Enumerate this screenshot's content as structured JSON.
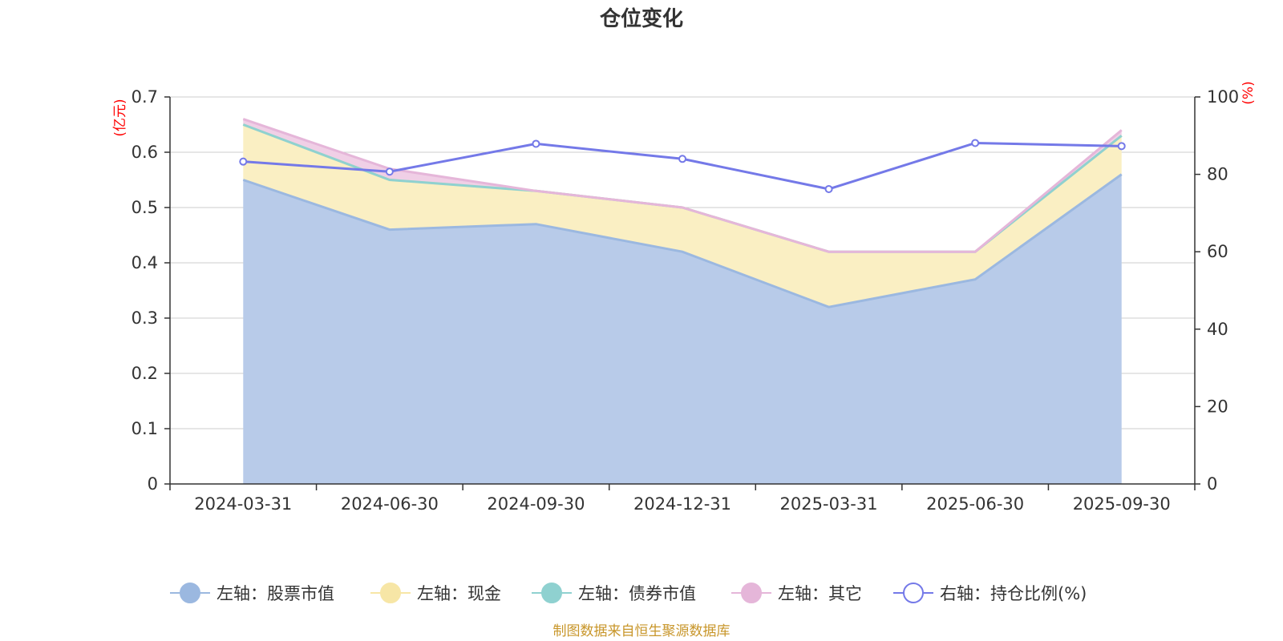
{
  "chart_data": {
    "type": "area",
    "title": "仓位变化",
    "categories": [
      "2024-03-31",
      "2024-06-30",
      "2024-09-30",
      "2024-12-31",
      "2025-03-31",
      "2025-06-30",
      "2025-09-30"
    ],
    "left_axis": {
      "unit": "(亿元)",
      "ylim": [
        0,
        0.7
      ],
      "ticks": [
        "0",
        "0.1",
        "0.2",
        "0.3",
        "0.4",
        "0.5",
        "0.6",
        "0.7"
      ]
    },
    "right_axis": {
      "unit": "(%)",
      "ylim": [
        0,
        100
      ],
      "ticks": [
        "0",
        "20",
        "40",
        "60",
        "80",
        "100"
      ]
    },
    "stacked_series": [
      {
        "name": "左轴：股票市值",
        "axis": "left",
        "color": "#9bb8e0",
        "fill": "#b8cbe9",
        "values": [
          0.55,
          0.46,
          0.47,
          0.42,
          0.32,
          0.37,
          0.56
        ]
      },
      {
        "name": "左轴：现金",
        "axis": "left",
        "color": "#f7e6a6",
        "fill": "#faefc3",
        "values": [
          0.1,
          0.09,
          0.06,
          0.08,
          0.1,
          0.05,
          0.07
        ]
      },
      {
        "name": "左轴：债券市值",
        "axis": "left",
        "color": "#8fd1d0",
        "fill": "#b9e3e2",
        "values": [
          0,
          0,
          0,
          0,
          0,
          0,
          0
        ]
      },
      {
        "name": "左轴：其它",
        "axis": "left",
        "color": "#e5b6d9",
        "fill": "#f0cfe6",
        "values": [
          0.01,
          0.02,
          0.0,
          0.0,
          0.0,
          0.0,
          0.01
        ]
      }
    ],
    "line_series": {
      "name": "右轴：持仓比例(%)",
      "axis": "right",
      "color": "#7479e8",
      "values": [
        83.3,
        80.7,
        87.9,
        84.0,
        76.2,
        88.1,
        87.3
      ]
    }
  },
  "source_text": "制图数据来自恒生聚源数据库"
}
